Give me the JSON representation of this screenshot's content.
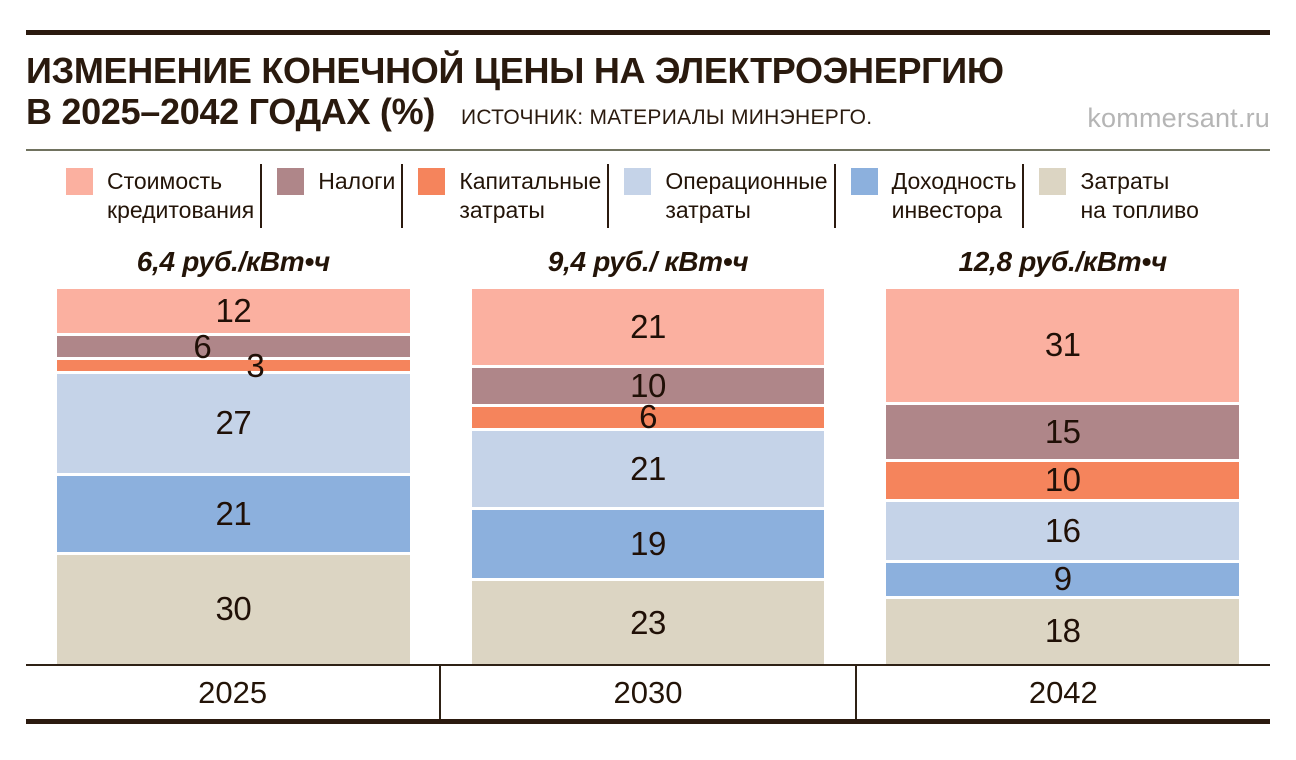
{
  "header": {
    "title_line1": "ИЗМЕНЕНИЕ КОНЕЧНОЙ ЦЕНЫ НА ЭЛЕКТРОЭНЕРГИЮ",
    "title_line2": "В 2025–2042 ГОДАХ (%)",
    "source": "ИСТОЧНИК: МАТЕРИАЛЫ МИНЭНЕРГО.",
    "site": "kommersant.ru"
  },
  "colors": {
    "rule_dark": "#2b1a0f",
    "rule_olive": "#70725f",
    "text_dark": "#231408",
    "site_gray": "#b5b5b5"
  },
  "legend": {
    "items": [
      {
        "lines": [
          "Стоимость",
          "кредитования"
        ]
      },
      {
        "lines": [
          "Налоги"
        ]
      },
      {
        "lines": [
          "Капитальные",
          "затраты"
        ]
      },
      {
        "lines": [
          "Операционные",
          "затраты"
        ]
      },
      {
        "lines": [
          "Доходность",
          "инвестора"
        ]
      },
      {
        "lines": [
          "Затраты",
          "на топливо"
        ]
      }
    ]
  },
  "chart_data": {
    "type": "bar",
    "stacked": true,
    "title": "ИЗМЕНЕНИЕ КОНЕЧНОЙ ЦЕНЫ НА ЭЛЕКТРОЭНЕРГИЮ В 2025–2042 ГОДАХ (%)",
    "value_unit": "%",
    "legend_position": "top",
    "categories": [
      "2025",
      "2030",
      "2042"
    ],
    "category_totals": [
      "6,4 руб./кВт•ч",
      "9,4 руб./ кВт•ч",
      "12,8 руб./кВт•ч"
    ],
    "series": [
      {
        "name": "Стоимость кредитования",
        "color": "#FBB0A0",
        "values": [
          12,
          21,
          31
        ]
      },
      {
        "name": "Налоги",
        "color": "#AF8689",
        "values": [
          6,
          10,
          15
        ]
      },
      {
        "name": "Капитальные затраты",
        "color": "#F5845C",
        "values": [
          3,
          6,
          10
        ]
      },
      {
        "name": "Операционные затраты",
        "color": "#C5D3E8",
        "values": [
          27,
          21,
          16
        ]
      },
      {
        "name": "Доходность инвестора",
        "color": "#8CB0DD",
        "values": [
          21,
          19,
          9
        ]
      },
      {
        "name": "Затраты на топливо",
        "color": "#DCD5C3",
        "values": [
          30,
          23,
          18
        ]
      }
    ]
  }
}
